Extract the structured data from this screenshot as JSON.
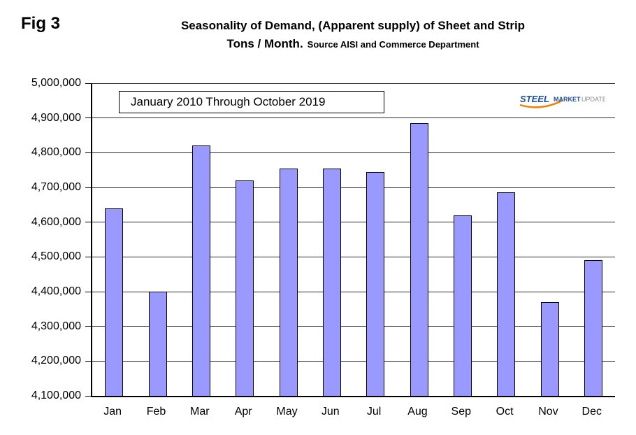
{
  "header": {
    "fig_label": "Fig 3",
    "title_line1": "Seasonality of Demand, (Apparent supply) of Sheet and Strip",
    "title_line2_main": "Tons / Month.",
    "title_line2_source": "Source AISI and Commerce Department"
  },
  "legend": {
    "text": "January 2010 Through October 2019"
  },
  "logo": {
    "steel": "STEEL",
    "market": "MARKET",
    "update": "UPDATE"
  },
  "chart_data": {
    "type": "bar",
    "title": "Seasonality of Demand, (Apparent supply) of Sheet and Strip",
    "subtitle": "Tons / Month. Source AISI and Commerce Department",
    "annotation": "January 2010 Through October 2019",
    "categories": [
      "Jan",
      "Feb",
      "Mar",
      "Apr",
      "May",
      "Jun",
      "Jul",
      "Aug",
      "Sep",
      "Oct",
      "Nov",
      "Dec"
    ],
    "values": [
      4640000,
      4400000,
      4820000,
      4720000,
      4755000,
      4755000,
      4745000,
      4885000,
      4620000,
      4685000,
      4370000,
      4490000
    ],
    "xlabel": "",
    "ylabel": "",
    "ylim": [
      4100000,
      5000000
    ],
    "ytick_step": 100000,
    "grid": true,
    "legend_position": "top-left-inside",
    "bar_color": "#9999FF",
    "bar_border_color": "#000000"
  }
}
